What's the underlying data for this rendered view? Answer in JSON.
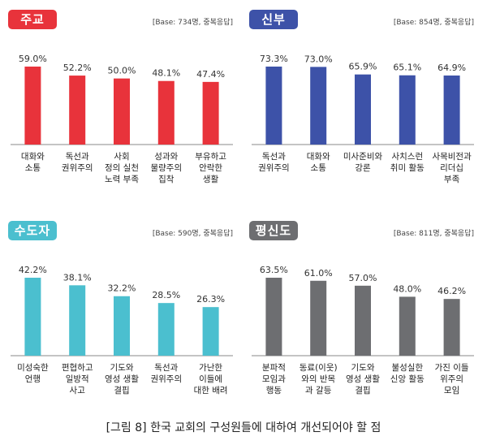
{
  "caption": "[그림 8] 한국 교회의 구성원들에 대하여 개선되어야 할 점",
  "chart_data": [
    {
      "type": "bar",
      "title": "주교",
      "note": "[Base: 734명, 중복응답]",
      "color": "#e8333b",
      "categories": [
        "대화와\n소통",
        "독선과\n권위주의",
        "사회\n정의 실천\n노력 부족",
        "성과와\n물량주의\n집착",
        "부유하고\n안락한\n생활"
      ],
      "values": [
        59.0,
        52.2,
        50.0,
        48.1,
        47.4
      ],
      "value_labels": [
        "59.0%",
        "52.2%",
        "50.0%",
        "48.1%",
        "47.4%"
      ]
    },
    {
      "type": "bar",
      "title": "신부",
      "note": "[Base: 854명, 중복응답]",
      "color": "#3d52a8",
      "categories": [
        "독선과\n권위주의",
        "대화와\n소통",
        "미사준비와\n강론",
        "사치스런\n취미 활동",
        "사목비전과\n리더십\n부족"
      ],
      "values": [
        73.3,
        73.0,
        65.9,
        65.1,
        64.9
      ],
      "value_labels": [
        "73.3%",
        "73.0%",
        "65.9%",
        "65.1%",
        "64.9%"
      ]
    },
    {
      "type": "bar",
      "title": "수도자",
      "note": "[Base: 590명, 중복응답]",
      "color": "#4bbfcf",
      "categories": [
        "미성숙한\n언행",
        "편협하고\n일방적\n사고",
        "기도와\n영성 생활\n결핍",
        "독선과\n권위주의",
        "가난한\n이들에\n대한 배려"
      ],
      "values": [
        42.2,
        38.1,
        32.2,
        28.5,
        26.3
      ],
      "value_labels": [
        "42.2%",
        "38.1%",
        "32.2%",
        "28.5%",
        "26.3%"
      ]
    },
    {
      "type": "bar",
      "title": "평신도",
      "note": "[Base: 811명, 중복응답]",
      "color": "#6d6e71",
      "categories": [
        "분파적\n모임과\n행동",
        "동료(이웃)\n와의 반목\n과 갈등",
        "기도와\n영성 생활\n결핍",
        "불성실한\n신앙 활동",
        "가진 이들\n위주의\n모임"
      ],
      "values": [
        63.5,
        61.0,
        57.0,
        48.0,
        46.2
      ],
      "value_labels": [
        "63.5%",
        "61.0%",
        "57.0%",
        "48.0%",
        "46.2%"
      ]
    }
  ]
}
